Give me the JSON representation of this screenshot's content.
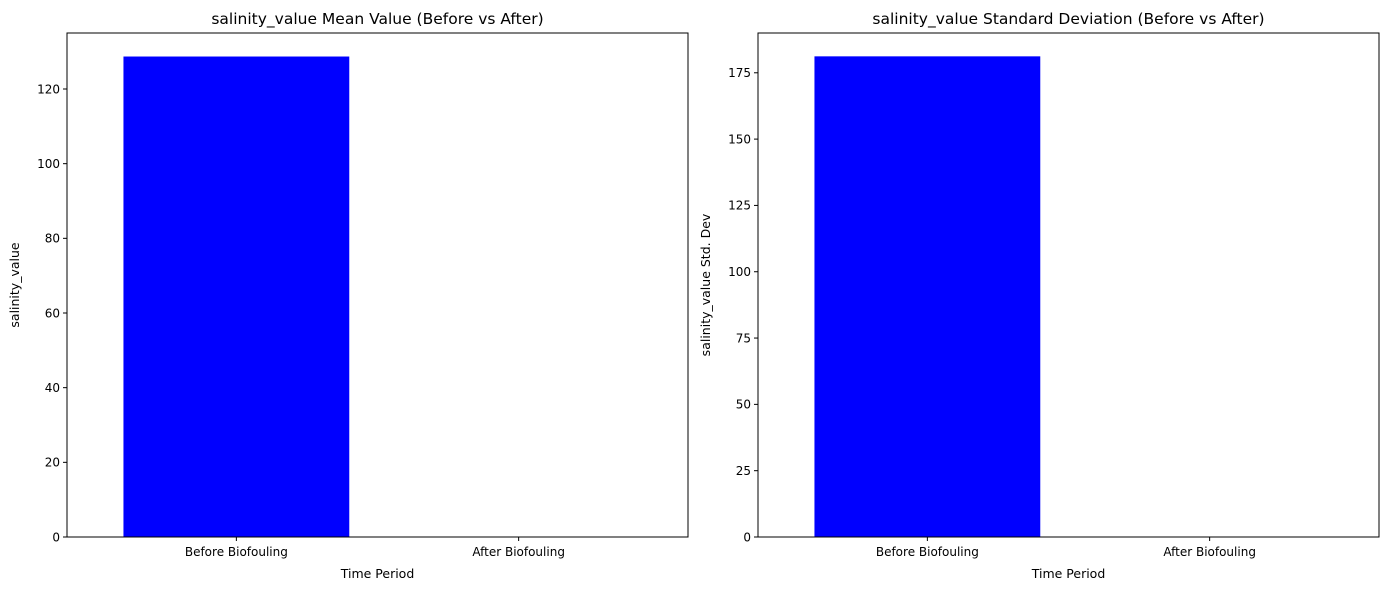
{
  "chart_data": [
    {
      "type": "bar",
      "title": "salinity_value Mean Value (Before vs After)",
      "xlabel": "Time Period",
      "ylabel": "salinity_value",
      "categories": [
        "Before Biofouling",
        "After Biofouling"
      ],
      "values": [
        128.7,
        0
      ],
      "ylim": [
        0,
        135
      ],
      "yticks": [
        0,
        20,
        40,
        60,
        80,
        100,
        120
      ],
      "bar_color": "#0000ff",
      "grid": false
    },
    {
      "type": "bar",
      "title": "salinity_value Standard Deviation (Before vs After)",
      "xlabel": "Time Period",
      "ylabel": "salinity_value Std. Dev",
      "categories": [
        "Before Biofouling",
        "After Biofouling"
      ],
      "values": [
        181.2,
        0
      ],
      "ylim": [
        0,
        190
      ],
      "yticks": [
        0,
        25,
        50,
        75,
        100,
        125,
        150,
        175
      ],
      "bar_color": "#0000ff",
      "grid": false
    }
  ]
}
